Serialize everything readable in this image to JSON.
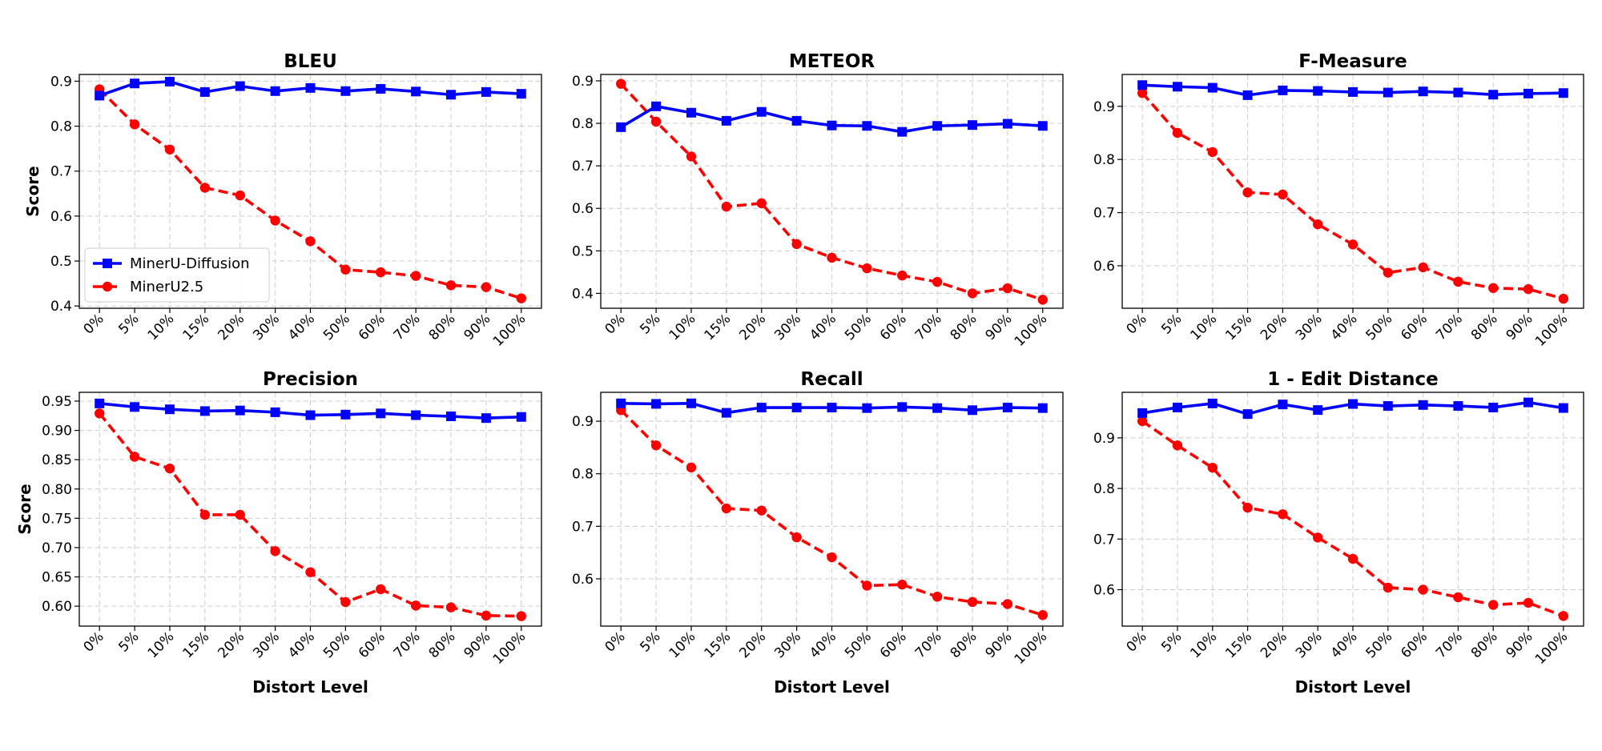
{
  "colors": {
    "minerU_diffusion": "#0000ff",
    "minerU25": "#ff0000",
    "grid": "#cccccc"
  },
  "chart_data": [
    {
      "type": "line",
      "title": "BLEU",
      "xlabel": "",
      "ylabel": "Score",
      "categories": [
        "0%",
        "5%",
        "10%",
        "15%",
        "20%",
        "30%",
        "40%",
        "50%",
        "60%",
        "70%",
        "80%",
        "90%",
        "100%"
      ],
      "ylim": [
        0.395,
        0.915
      ],
      "yticks": [
        0.4,
        0.5,
        0.6,
        0.7,
        0.8,
        0.9
      ],
      "ytick_labels": [
        "0.4",
        "0.5",
        "0.6",
        "0.7",
        "0.8",
        "0.9"
      ],
      "grid": true,
      "legend": {
        "position": "lower-left",
        "entries": [
          "MinerU-Diffusion",
          "MinerU2.5"
        ]
      },
      "series": [
        {
          "name": "MinerU-Diffusion",
          "color": "#0000ff",
          "marker": "square",
          "style": "solid",
          "values": [
            0.868,
            0.895,
            0.899,
            0.876,
            0.889,
            0.878,
            0.885,
            0.878,
            0.883,
            0.877,
            0.87,
            0.876,
            0.872
          ]
        },
        {
          "name": "MinerU2.5",
          "color": "#ff0000",
          "marker": "circle",
          "style": "dashed",
          "values": [
            0.882,
            0.804,
            0.748,
            0.663,
            0.646,
            0.59,
            0.544,
            0.481,
            0.475,
            0.467,
            0.446,
            0.442,
            0.417
          ]
        }
      ]
    },
    {
      "type": "line",
      "title": "METEOR",
      "xlabel": "",
      "ylabel": "",
      "categories": [
        "0%",
        "5%",
        "10%",
        "15%",
        "20%",
        "30%",
        "40%",
        "50%",
        "60%",
        "70%",
        "80%",
        "90%",
        "100%"
      ],
      "ylim": [
        0.365,
        0.915
      ],
      "yticks": [
        0.4,
        0.5,
        0.6,
        0.7,
        0.8,
        0.9
      ],
      "ytick_labels": [
        "0.4",
        "0.5",
        "0.6",
        "0.7",
        "0.8",
        "0.9"
      ],
      "grid": true,
      "series": [
        {
          "name": "MinerU-Diffusion",
          "color": "#0000ff",
          "marker": "square",
          "style": "solid",
          "values": [
            0.791,
            0.84,
            0.825,
            0.806,
            0.827,
            0.806,
            0.795,
            0.794,
            0.78,
            0.794,
            0.796,
            0.799,
            0.794
          ]
        },
        {
          "name": "MinerU2.5",
          "color": "#ff0000",
          "marker": "circle",
          "style": "dashed",
          "values": [
            0.893,
            0.804,
            0.722,
            0.604,
            0.612,
            0.516,
            0.484,
            0.459,
            0.442,
            0.427,
            0.4,
            0.412,
            0.385
          ]
        }
      ]
    },
    {
      "type": "line",
      "title": "F-Measure",
      "xlabel": "",
      "ylabel": "",
      "categories": [
        "0%",
        "5%",
        "10%",
        "15%",
        "20%",
        "30%",
        "40%",
        "50%",
        "60%",
        "70%",
        "80%",
        "90%",
        "100%"
      ],
      "ylim": [
        0.52,
        0.96
      ],
      "yticks": [
        0.6,
        0.7,
        0.8,
        0.9
      ],
      "ytick_labels": [
        "0.6",
        "0.7",
        "0.8",
        "0.9"
      ],
      "grid": true,
      "series": [
        {
          "name": "MinerU-Diffusion",
          "color": "#0000ff",
          "marker": "square",
          "style": "solid",
          "values": [
            0.94,
            0.937,
            0.935,
            0.921,
            0.93,
            0.929,
            0.927,
            0.926,
            0.928,
            0.926,
            0.922,
            0.924,
            0.925
          ]
        },
        {
          "name": "MinerU2.5",
          "color": "#ff0000",
          "marker": "circle",
          "style": "dashed",
          "values": [
            0.925,
            0.85,
            0.814,
            0.738,
            0.734,
            0.678,
            0.64,
            0.587,
            0.597,
            0.57,
            0.558,
            0.556,
            0.538
          ]
        }
      ]
    },
    {
      "type": "line",
      "title": "Precision",
      "xlabel": "Distort Level",
      "ylabel": "Score",
      "categories": [
        "0%",
        "5%",
        "10%",
        "15%",
        "20%",
        "30%",
        "40%",
        "50%",
        "60%",
        "70%",
        "80%",
        "90%",
        "100%"
      ],
      "ylim": [
        0.566,
        0.965
      ],
      "yticks": [
        0.6,
        0.65,
        0.7,
        0.75,
        0.8,
        0.85,
        0.9,
        0.95
      ],
      "ytick_labels": [
        "0.60",
        "0.65",
        "0.70",
        "0.75",
        "0.80",
        "0.85",
        "0.90",
        "0.95"
      ],
      "grid": true,
      "series": [
        {
          "name": "MinerU-Diffusion",
          "color": "#0000ff",
          "marker": "square",
          "style": "solid",
          "values": [
            0.946,
            0.94,
            0.936,
            0.933,
            0.934,
            0.931,
            0.926,
            0.927,
            0.929,
            0.926,
            0.924,
            0.921,
            0.923
          ]
        },
        {
          "name": "MinerU2.5",
          "color": "#ff0000",
          "marker": "circle",
          "style": "dashed",
          "values": [
            0.929,
            0.855,
            0.835,
            0.756,
            0.756,
            0.694,
            0.658,
            0.607,
            0.629,
            0.601,
            0.598,
            0.584,
            0.583
          ]
        }
      ]
    },
    {
      "type": "line",
      "title": "Recall",
      "xlabel": "Distort Level",
      "ylabel": "",
      "categories": [
        "0%",
        "5%",
        "10%",
        "15%",
        "20%",
        "30%",
        "40%",
        "50%",
        "60%",
        "70%",
        "80%",
        "90%",
        "100%"
      ],
      "ylim": [
        0.51,
        0.955
      ],
      "yticks": [
        0.6,
        0.7,
        0.8,
        0.9
      ],
      "ytick_labels": [
        "0.6",
        "0.7",
        "0.8",
        "0.9"
      ],
      "grid": true,
      "series": [
        {
          "name": "MinerU-Diffusion",
          "color": "#0000ff",
          "marker": "square",
          "style": "solid",
          "values": [
            0.934,
            0.933,
            0.934,
            0.916,
            0.926,
            0.926,
            0.926,
            0.925,
            0.927,
            0.925,
            0.921,
            0.926,
            0.925
          ]
        },
        {
          "name": "MinerU2.5",
          "color": "#ff0000",
          "marker": "circle",
          "style": "dashed",
          "values": [
            0.921,
            0.854,
            0.812,
            0.734,
            0.73,
            0.679,
            0.641,
            0.587,
            0.589,
            0.566,
            0.556,
            0.552,
            0.531
          ]
        }
      ]
    },
    {
      "type": "line",
      "title": "1 - Edit Distance",
      "xlabel": "Distort Level",
      "ylabel": "",
      "categories": [
        "0%",
        "5%",
        "10%",
        "15%",
        "20%",
        "30%",
        "40%",
        "50%",
        "60%",
        "70%",
        "80%",
        "90%",
        "100%"
      ],
      "ylim": [
        0.528,
        0.99
      ],
      "yticks": [
        0.6,
        0.7,
        0.8,
        0.9
      ],
      "ytick_labels": [
        "0.6",
        "0.7",
        "0.8",
        "0.9"
      ],
      "grid": true,
      "series": [
        {
          "name": "MinerU-Diffusion",
          "color": "#0000ff",
          "marker": "square",
          "style": "solid",
          "values": [
            0.949,
            0.96,
            0.968,
            0.947,
            0.966,
            0.955,
            0.967,
            0.963,
            0.965,
            0.963,
            0.96,
            0.97,
            0.959
          ]
        },
        {
          "name": "MinerU2.5",
          "color": "#ff0000",
          "marker": "circle",
          "style": "dashed",
          "values": [
            0.933,
            0.885,
            0.841,
            0.762,
            0.749,
            0.703,
            0.661,
            0.604,
            0.6,
            0.585,
            0.57,
            0.574,
            0.548
          ]
        }
      ]
    }
  ]
}
